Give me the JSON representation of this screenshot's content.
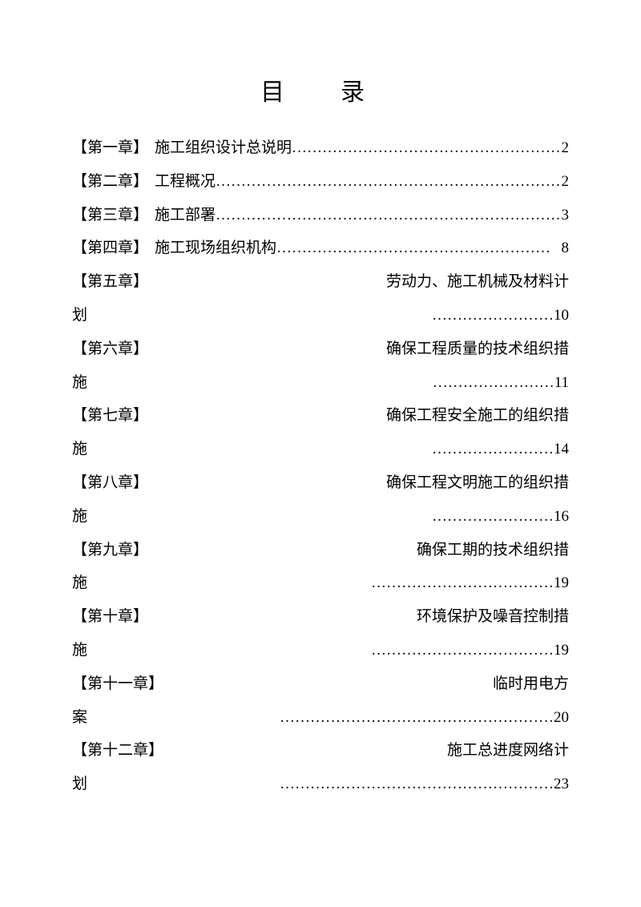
{
  "document": {
    "title": "目　录",
    "font_family": "SimSun",
    "title_fontsize": 30,
    "body_fontsize": 19,
    "line_height": 2.2,
    "text_color": "#000000",
    "background_color": "#ffffff",
    "leader_char": "…"
  },
  "toc": {
    "entries": [
      {
        "label": "【第一章】",
        "title": "施工组织设计总说明",
        "page": "2",
        "wrapped": false
      },
      {
        "label": "【第二章】",
        "title": "工程概况",
        "page": "2",
        "wrapped": false
      },
      {
        "label": "【第三章】",
        "title": "施工部署",
        "page": "3",
        "wrapped": false
      },
      {
        "label": "【第四章】",
        "title": "施工现场组织机构",
        "page": "8",
        "wrapped": false
      },
      {
        "label": "【第五章】",
        "title_part1": "劳动力、施工机械及材料计",
        "title_part2": "划",
        "page": "10",
        "wrapped": true
      },
      {
        "label": "【第六章】",
        "title_part1": "确保工程质量的技术组织措",
        "title_part2": "施",
        "page": "11",
        "wrapped": true
      },
      {
        "label": "【第七章】",
        "title_part1": "确保工程安全施工的组织措",
        "title_part2": "施",
        "page": "14",
        "wrapped": true
      },
      {
        "label": "【第八章】",
        "title_part1": "确保工程文明施工的组织措",
        "title_part2": "施",
        "page": "16",
        "wrapped": true
      },
      {
        "label": "【第九章】",
        "title_part1": "确保工期的技术组织措",
        "title_part2": "施",
        "page": "19",
        "wrapped": true
      },
      {
        "label": "【第十章】",
        "title_part1": "环境保护及噪音控制措",
        "title_part2": "施",
        "page": "19",
        "wrapped": true
      },
      {
        "label": "【第十一章】",
        "title_part1": "临时用电方",
        "title_part2": "案",
        "page": "20",
        "wrapped": true
      },
      {
        "label": "【第十二章】",
        "title_part1": "施工总进度网络计",
        "title_part2": "划",
        "page": "23",
        "wrapped": true
      }
    ],
    "leader_short": "……………………",
    "leader_mid": "………………………………",
    "leader_long": "………………………………………………",
    "leader_xlong": "……………………………………………………………"
  }
}
